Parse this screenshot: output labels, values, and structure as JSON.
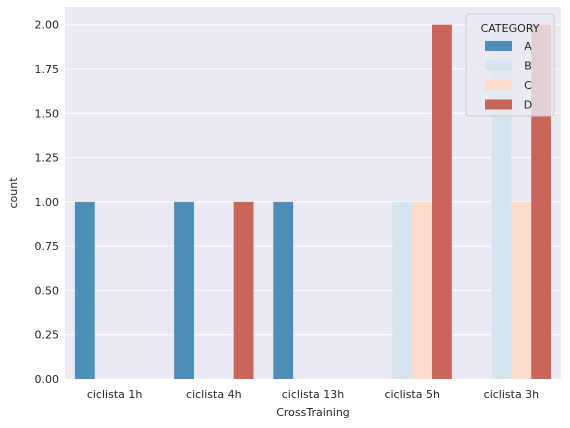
{
  "chart_data": {
    "type": "bar",
    "title": "",
    "xlabel": "CrossTraining",
    "ylabel": "count",
    "ylim": [
      0,
      2.1
    ],
    "yticks": [
      "0.00",
      "0.25",
      "0.50",
      "0.75",
      "1.00",
      "1.25",
      "1.50",
      "1.75",
      "2.00"
    ],
    "categories": [
      "ciclista 1h",
      "ciclista 4h",
      "ciclista 13h",
      "ciclista 5h",
      "ciclista 3h"
    ],
    "series": [
      {
        "name": "A",
        "color": "#4e8fb9",
        "values": [
          1,
          1,
          1,
          0,
          0
        ]
      },
      {
        "name": "B",
        "color": "#d6e4ef",
        "values": [
          0,
          0,
          0,
          1,
          2
        ]
      },
      {
        "name": "C",
        "color": "#fbdccb",
        "values": [
          0,
          0,
          0,
          1,
          1
        ]
      },
      {
        "name": "D",
        "color": "#c8665a",
        "values": [
          0,
          1,
          0,
          2,
          2
        ]
      }
    ],
    "legend": {
      "title": "CATEGORY",
      "placement": "top-right"
    },
    "grid": true,
    "background": "#eaeaf2",
    "grid_color": "#ffffff"
  }
}
